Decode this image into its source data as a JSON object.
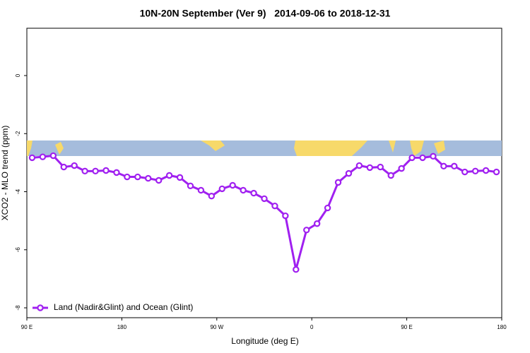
{
  "chart_data": {
    "type": "line",
    "title": "10N-20N September (Ver 9)   2014-09-06 to 2018-12-31",
    "x_label": "Longitude (deg E)",
    "y_label": "XCO2 - MLO trend (ppm)",
    "x": [
      95,
      105,
      115,
      125,
      135,
      145,
      155,
      165,
      175,
      185,
      195,
      205,
      215,
      225,
      235,
      245,
      255,
      265,
      275,
      285,
      295,
      305,
      315,
      325,
      335,
      345,
      355,
      365,
      375,
      385,
      395,
      405,
      415,
      425,
      435,
      445,
      455,
      465,
      475,
      485,
      495,
      505,
      515,
      525,
      535
    ],
    "series": [
      {
        "name": "Land (Nadir&Glint) and Ocean (Glint)",
        "color": "#a020f0",
        "values": [
          -2.83,
          -2.8,
          -2.76,
          -3.15,
          -3.1,
          -3.29,
          -3.29,
          -3.27,
          -3.34,
          -3.49,
          -3.49,
          -3.54,
          -3.61,
          -3.44,
          -3.51,
          -3.8,
          -3.95,
          -4.15,
          -3.9,
          -3.78,
          -3.95,
          -4.05,
          -4.24,
          -4.49,
          -4.83,
          -6.68,
          -5.32,
          -5.1,
          -4.56,
          -3.68,
          -3.37,
          -3.1,
          -3.17,
          -3.15,
          -3.44,
          -3.2,
          -2.83,
          -2.83,
          -2.78,
          -3.12,
          -3.12,
          -3.32,
          -3.29,
          -3.27,
          -3.32
        ]
      }
    ],
    "xlim": [
      90,
      540
    ],
    "xticks": [
      {
        "value": 90,
        "label": "90 E"
      },
      180,
      {
        "value": 270,
        "label": "90 W"
      },
      {
        "value": 360,
        "label": "0"
      },
      {
        "value": 450,
        "label": "90 E"
      },
      {
        "value": 540,
        "label": "180"
      }
    ],
    "ylim": [
      -8.34,
      1.63
    ],
    "yticks": [
      0,
      -2,
      -4,
      -6,
      -8
    ],
    "legend": "bottom-left"
  }
}
